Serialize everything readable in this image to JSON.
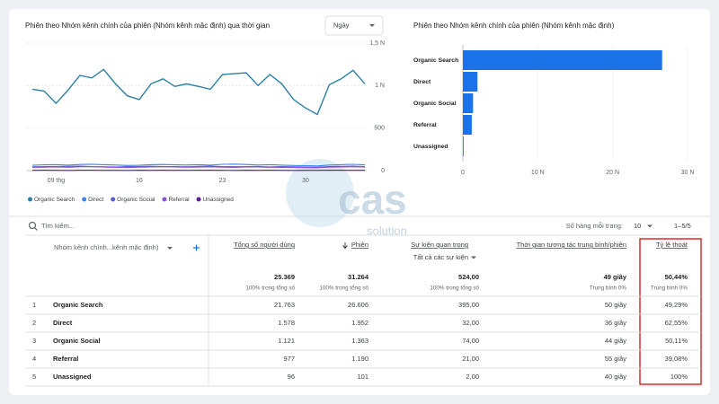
{
  "chart_data": [
    {
      "type": "line",
      "title": "Phiên theo Nhóm kênh chính của phiên (Nhóm kênh mặc định) qua thời gian",
      "dropdown": "Ngày",
      "categories": [
        null,
        null,
        "09 thg",
        null,
        null,
        null,
        null,
        null,
        null,
        "16",
        null,
        null,
        null,
        null,
        null,
        null,
        "23",
        null,
        null,
        null,
        null,
        null,
        null,
        "30",
        null,
        null,
        null,
        null,
        null
      ],
      "series": [
        {
          "name": "Organic Search",
          "color": "#2a7fa6",
          "values": [
            957,
            935,
            791,
            946,
            1120,
            1090,
            1190,
            1020,
            880,
            836,
            1020,
            1080,
            990,
            1020,
            990,
            957,
            1130,
            1140,
            1150,
            1000,
            1130,
            1020,
            836,
            737,
            660,
            1010,
            1080,
            1180,
            1020
          ]
        },
        {
          "name": "Direct",
          "color": "#3b86e8",
          "values": [
            62,
            68,
            70,
            64,
            72,
            75,
            70,
            66,
            60,
            63,
            70,
            72,
            68,
            66,
            70,
            64,
            74,
            76,
            72,
            66,
            70,
            64,
            60,
            58,
            55,
            66,
            70,
            74,
            68
          ]
        },
        {
          "name": "Organic Social",
          "color": "#5a5fcf",
          "values": [
            44,
            48,
            46,
            50,
            52,
            47,
            45,
            42,
            46,
            49,
            51,
            48,
            46,
            44,
            50,
            52,
            48,
            45,
            47,
            49,
            43,
            46,
            44,
            42,
            40,
            48,
            50,
            52,
            47
          ]
        },
        {
          "name": "Referral",
          "color": "#8a4fd8",
          "values": [
            38,
            40,
            42,
            39,
            44,
            46,
            41,
            38,
            36,
            40,
            43,
            45,
            42,
            39,
            41,
            44,
            40,
            38,
            42,
            43,
            39,
            37,
            36,
            35,
            34,
            40,
            42,
            45,
            41
          ]
        },
        {
          "name": "Unassigned",
          "color": "#5b1f9e",
          "values": [
            3,
            4,
            3,
            2,
            4,
            5,
            3,
            3,
            2,
            4,
            3,
            4,
            3,
            3,
            5,
            4,
            3,
            2,
            4,
            3,
            4,
            3,
            2,
            3,
            3,
            4,
            5,
            3,
            4
          ]
        }
      ],
      "ylim": [
        0,
        1500
      ],
      "yticks": [
        0,
        500,
        {
          "value": 1000,
          "label": "1 N"
        },
        {
          "value": 1500,
          "label": "1,5 N"
        }
      ]
    },
    {
      "type": "bar",
      "title": "Phiên theo Nhóm kênh chính của phiên (Nhóm kênh mặc định)",
      "categories": [
        "Organic Search",
        "Direct",
        "Organic Social",
        "Referral",
        "Unassigned"
      ],
      "values": [
        26606,
        1952,
        1363,
        1190,
        101
      ],
      "color": "#1a73e8",
      "xlim": [
        0,
        30000
      ],
      "xticks": [
        0,
        {
          "value": 10000,
          "label": "10 N"
        },
        {
          "value": 20000,
          "label": "20 N"
        },
        {
          "value": 30000,
          "label": "30 N"
        }
      ]
    }
  ],
  "table": {
    "search_placeholder": "Tìm kiếm...",
    "rows_per_page_label": "Số hàng mỗi trang:",
    "rows_per_page": "10",
    "pagination": "1–5/5",
    "dimension_header": "Nhóm kênh chính...kênh mặc định)",
    "columns": [
      {
        "label": "Tổng số người dùng"
      },
      {
        "label": "Phiên"
      },
      {
        "label": "Sự kiện quan trọng",
        "sublabel": "Tất cả các sự kiện"
      },
      {
        "label": "Thời gian tương tác trung bình/phiên"
      },
      {
        "label": "Tỷ lệ thoát"
      }
    ],
    "totals": {
      "values": [
        "25.369",
        "31.264",
        "524,00",
        "49 giây",
        "50,44%"
      ],
      "notes": [
        "100% trong tổng số",
        "100% trong tổng số",
        "100% trong tổng số",
        "Trung bình 0%",
        "Trung bình 0%"
      ]
    },
    "rows": [
      {
        "index": 1,
        "name": "Organic Search",
        "values": [
          "21.763",
          "26.606",
          "395,00",
          "50 giây",
          "49,29%"
        ]
      },
      {
        "index": 2,
        "name": "Direct",
        "values": [
          "1.578",
          "1.952",
          "32,00",
          "36 giây",
          "62,55%"
        ]
      },
      {
        "index": 3,
        "name": "Organic Social",
        "values": [
          "1.121",
          "1.363",
          "74,00",
          "44 giây",
          "50,11%"
        ]
      },
      {
        "index": 4,
        "name": "Referral",
        "values": [
          "977",
          "1.190",
          "21,00",
          "55 giây",
          "39,08%"
        ]
      },
      {
        "index": 5,
        "name": "Unassigned",
        "values": [
          "96",
          "101",
          "2,00",
          "40 giây",
          "100%"
        ]
      }
    ]
  },
  "watermark": {
    "brand": "cas",
    "tagline": "solution"
  }
}
